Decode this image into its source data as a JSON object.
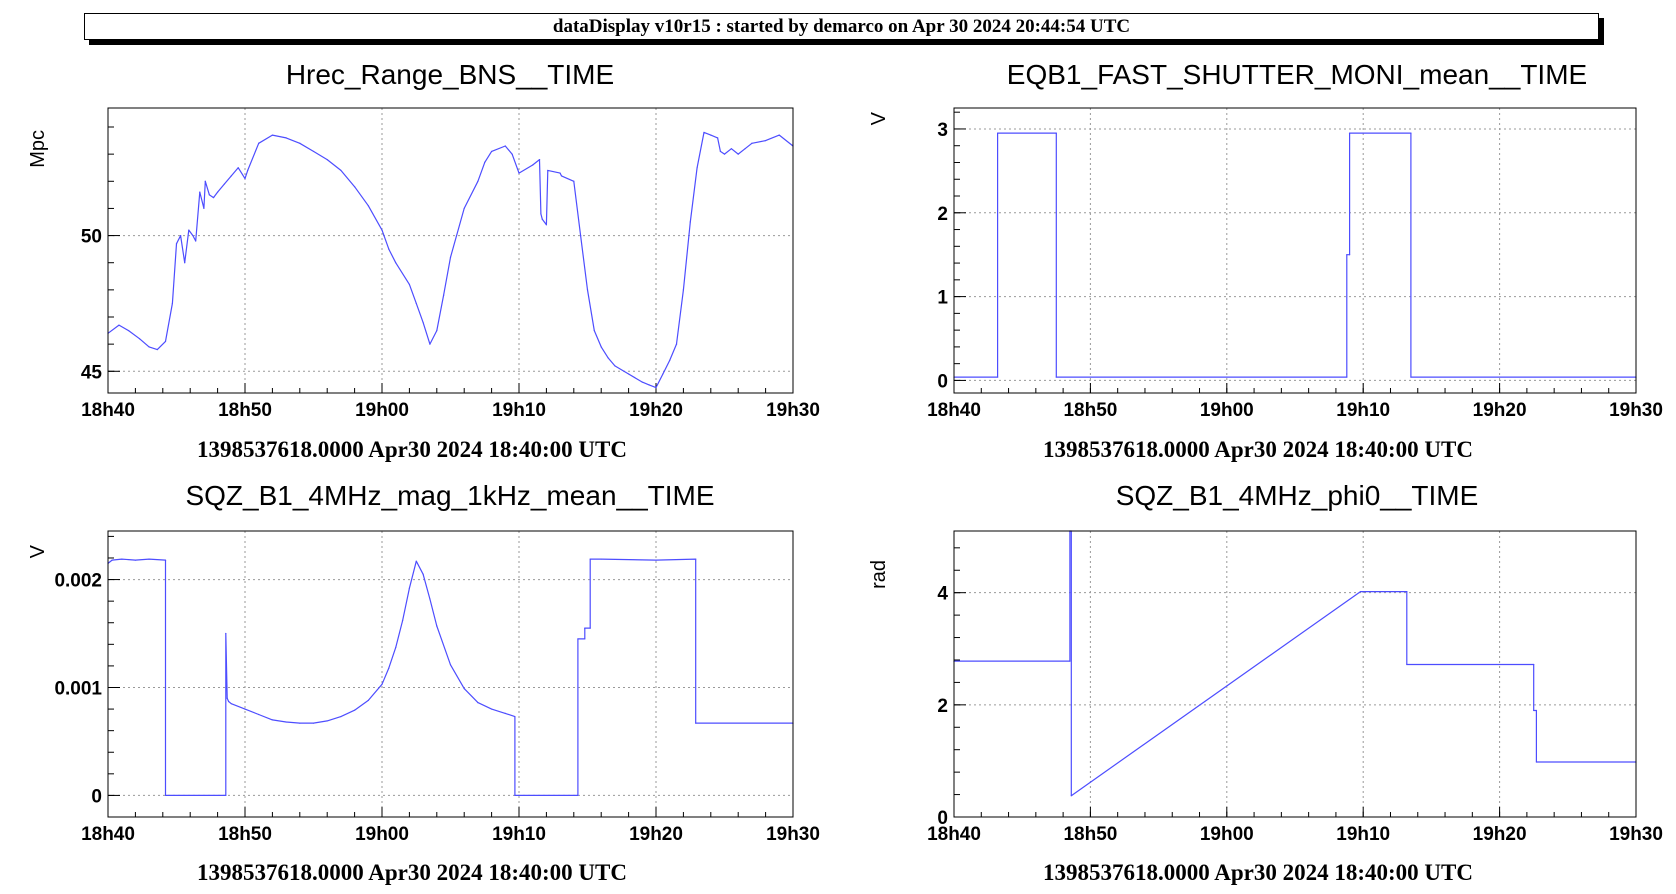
{
  "banner": "dataDisplay v10r15 : started by demarco on Apr 30 2024 20:44:54 UTC",
  "series_color": "#4d4dff",
  "chart_data": [
    {
      "type": "line",
      "title": "Hrec_Range_BNS__TIME",
      "ylabel": "Mpc",
      "xlabel": "1398537618.0000 Apr30 2024 18:40:00 UTC",
      "x_unit": "minutes after 18h40",
      "xlim": [
        0,
        50
      ],
      "ylim": [
        44.2,
        54.7
      ],
      "xticks": [
        {
          "v": 0,
          "label": "18h40"
        },
        {
          "v": 10,
          "label": "18h50"
        },
        {
          "v": 20,
          "label": "19h00"
        },
        {
          "v": 30,
          "label": "19h10"
        },
        {
          "v": 40,
          "label": "19h20"
        },
        {
          "v": 50,
          "label": "19h30"
        }
      ],
      "yticks": [
        {
          "v": 45,
          "label": "45"
        },
        {
          "v": 50,
          "label": "50"
        }
      ],
      "grid": true,
      "x": [
        0,
        0.8,
        1.5,
        2.3,
        3,
        3.6,
        4.2,
        4.7,
        5,
        5.3,
        5.6,
        5.9,
        6.2,
        6.4,
        6.7,
        7,
        7.1,
        7.4,
        7.7,
        8,
        8.5,
        9,
        9.5,
        10,
        10.2,
        11,
        12,
        13,
        14,
        15,
        16,
        17,
        18,
        19,
        20,
        20.5,
        21,
        22,
        22.5,
        23,
        23.5,
        24,
        24.5,
        25,
        26,
        27,
        27.5,
        28,
        29,
        29.5,
        30,
        31,
        31.5,
        31.6,
        31.7,
        32,
        32.1,
        33,
        33.1,
        34,
        34.5,
        35,
        35.5,
        36,
        36.5,
        37,
        38,
        39,
        39.5,
        40,
        40.5,
        41,
        41.5,
        42,
        42.5,
        43,
        43.5,
        44,
        44.5,
        44.7,
        45,
        45.5,
        46,
        46.5,
        47,
        48,
        49,
        50
      ],
      "y": [
        46.4,
        46.7,
        46.5,
        46.2,
        45.9,
        45.8,
        46.1,
        47.5,
        49.7,
        50.0,
        49.0,
        50.2,
        50.0,
        49.8,
        51.6,
        51.0,
        52.0,
        51.5,
        51.4,
        51.6,
        51.9,
        52.2,
        52.5,
        52.1,
        52.4,
        53.4,
        53.7,
        53.6,
        53.4,
        53.1,
        52.8,
        52.4,
        51.8,
        51.1,
        50.2,
        49.5,
        49.0,
        48.2,
        47.5,
        46.8,
        46.0,
        46.5,
        47.8,
        49.2,
        51.0,
        52.0,
        52.7,
        53.1,
        53.3,
        53.0,
        52.3,
        52.6,
        52.8,
        50.8,
        50.6,
        50.4,
        52.4,
        52.3,
        52.2,
        52.0,
        50.0,
        48.0,
        46.5,
        45.9,
        45.5,
        45.2,
        44.9,
        44.6,
        44.5,
        44.4,
        44.9,
        45.4,
        46.0,
        48.0,
        50.5,
        52.5,
        53.8,
        53.7,
        53.6,
        53.1,
        53.0,
        53.2,
        53.0,
        53.2,
        53.4,
        53.5,
        53.7,
        53.3
      ]
    },
    {
      "type": "line",
      "title": "EQB1_FAST_SHUTTER_MONI_mean__TIME",
      "ylabel": "V",
      "xlabel": "1398537618.0000 Apr30 2024 18:40:00 UTC",
      "x_unit": "minutes after 18h40",
      "xlim": [
        0,
        50
      ],
      "ylim": [
        -0.15,
        3.25
      ],
      "xticks": [
        {
          "v": 0,
          "label": "18h40"
        },
        {
          "v": 10,
          "label": "18h50"
        },
        {
          "v": 20,
          "label": "19h00"
        },
        {
          "v": 30,
          "label": "19h10"
        },
        {
          "v": 40,
          "label": "19h20"
        },
        {
          "v": 50,
          "label": "19h30"
        }
      ],
      "yticks": [
        {
          "v": 0,
          "label": "0"
        },
        {
          "v": 1,
          "label": "1"
        },
        {
          "v": 2,
          "label": "2"
        },
        {
          "v": 3,
          "label": "3"
        }
      ],
      "grid": true,
      "x": [
        0,
        3.2,
        3.2,
        7.5,
        7.5,
        28.8,
        28.8,
        29.0,
        29.0,
        33.5,
        33.5,
        50
      ],
      "y": [
        0.04,
        0.04,
        2.95,
        2.95,
        0.04,
        0.04,
        1.5,
        1.5,
        2.95,
        2.95,
        0.04,
        0.04
      ]
    },
    {
      "type": "line",
      "title": "SQZ_B1_4MHz_mag_1kHz_mean__TIME",
      "ylabel": "V",
      "xlabel": "1398537618.0000 Apr30 2024 18:40:00 UTC",
      "x_unit": "minutes after 18h40",
      "xlim": [
        0,
        50
      ],
      "ylim": [
        -0.0002,
        0.00245
      ],
      "xticks": [
        {
          "v": 0,
          "label": "18h40"
        },
        {
          "v": 10,
          "label": "18h50"
        },
        {
          "v": 20,
          "label": "19h00"
        },
        {
          "v": 30,
          "label": "19h10"
        },
        {
          "v": 40,
          "label": "19h20"
        },
        {
          "v": 50,
          "label": "19h30"
        }
      ],
      "yticks": [
        {
          "v": 0,
          "label": "0"
        },
        {
          "v": 0.001,
          "label": "0.001"
        },
        {
          "v": 0.002,
          "label": "0.002"
        }
      ],
      "grid": true,
      "x": [
        0,
        0.3,
        1,
        2,
        3,
        4.2,
        4.2,
        8.6,
        8.6,
        8.7,
        8.8,
        9,
        10,
        11,
        12,
        13,
        14,
        15,
        16,
        17,
        18,
        19,
        20,
        20.5,
        21,
        21.5,
        22,
        22.5,
        23,
        23.5,
        24,
        25,
        26,
        27,
        28,
        29,
        29.7,
        29.7,
        34.3,
        34.3,
        34.8,
        34.8,
        35.2,
        35.2,
        36,
        40,
        42.9,
        42.9,
        50
      ],
      "y": [
        0.00215,
        0.00218,
        0.00219,
        0.00218,
        0.00219,
        0.00218,
        0.0,
        0.0,
        0.0015,
        0.0009,
        0.00087,
        0.00085,
        0.0008,
        0.00075,
        0.0007,
        0.00068,
        0.00067,
        0.00067,
        0.00069,
        0.00073,
        0.00079,
        0.00088,
        0.00103,
        0.00118,
        0.00137,
        0.00162,
        0.00192,
        0.00217,
        0.00205,
        0.00182,
        0.00157,
        0.00121,
        0.00099,
        0.00086,
        0.0008,
        0.00076,
        0.00073,
        0.0,
        0.0,
        0.00145,
        0.00145,
        0.00155,
        0.00155,
        0.00219,
        0.00219,
        0.00218,
        0.00219,
        0.00067,
        0.00067
      ]
    },
    {
      "type": "line",
      "title": "SQZ_B1_4MHz_phi0__TIME",
      "ylabel": "rad",
      "xlabel": "1398537618.0000 Apr30 2024 18:40:00 UTC",
      "x_unit": "minutes after 18h40",
      "xlim": [
        0,
        50
      ],
      "ylim": [
        0,
        5.1
      ],
      "xticks": [
        {
          "v": 0,
          "label": "18h40"
        },
        {
          "v": 10,
          "label": "18h50"
        },
        {
          "v": 20,
          "label": "19h00"
        },
        {
          "v": 30,
          "label": "19h10"
        },
        {
          "v": 40,
          "label": "19h20"
        },
        {
          "v": 50,
          "label": "19h30"
        }
      ],
      "yticks": [
        {
          "v": 0,
          "label": "0"
        },
        {
          "v": 2,
          "label": "2"
        },
        {
          "v": 4,
          "label": "4"
        }
      ],
      "grid": true,
      "x": [
        0,
        8.5,
        8.5,
        8.6,
        8.6,
        29.8,
        33.2,
        33.2,
        42.5,
        42.5,
        42.7,
        42.7,
        50
      ],
      "y": [
        2.78,
        2.78,
        5.1,
        5.1,
        0.38,
        4.02,
        4.02,
        2.72,
        2.72,
        1.9,
        1.9,
        0.98,
        0.98
      ]
    }
  ]
}
